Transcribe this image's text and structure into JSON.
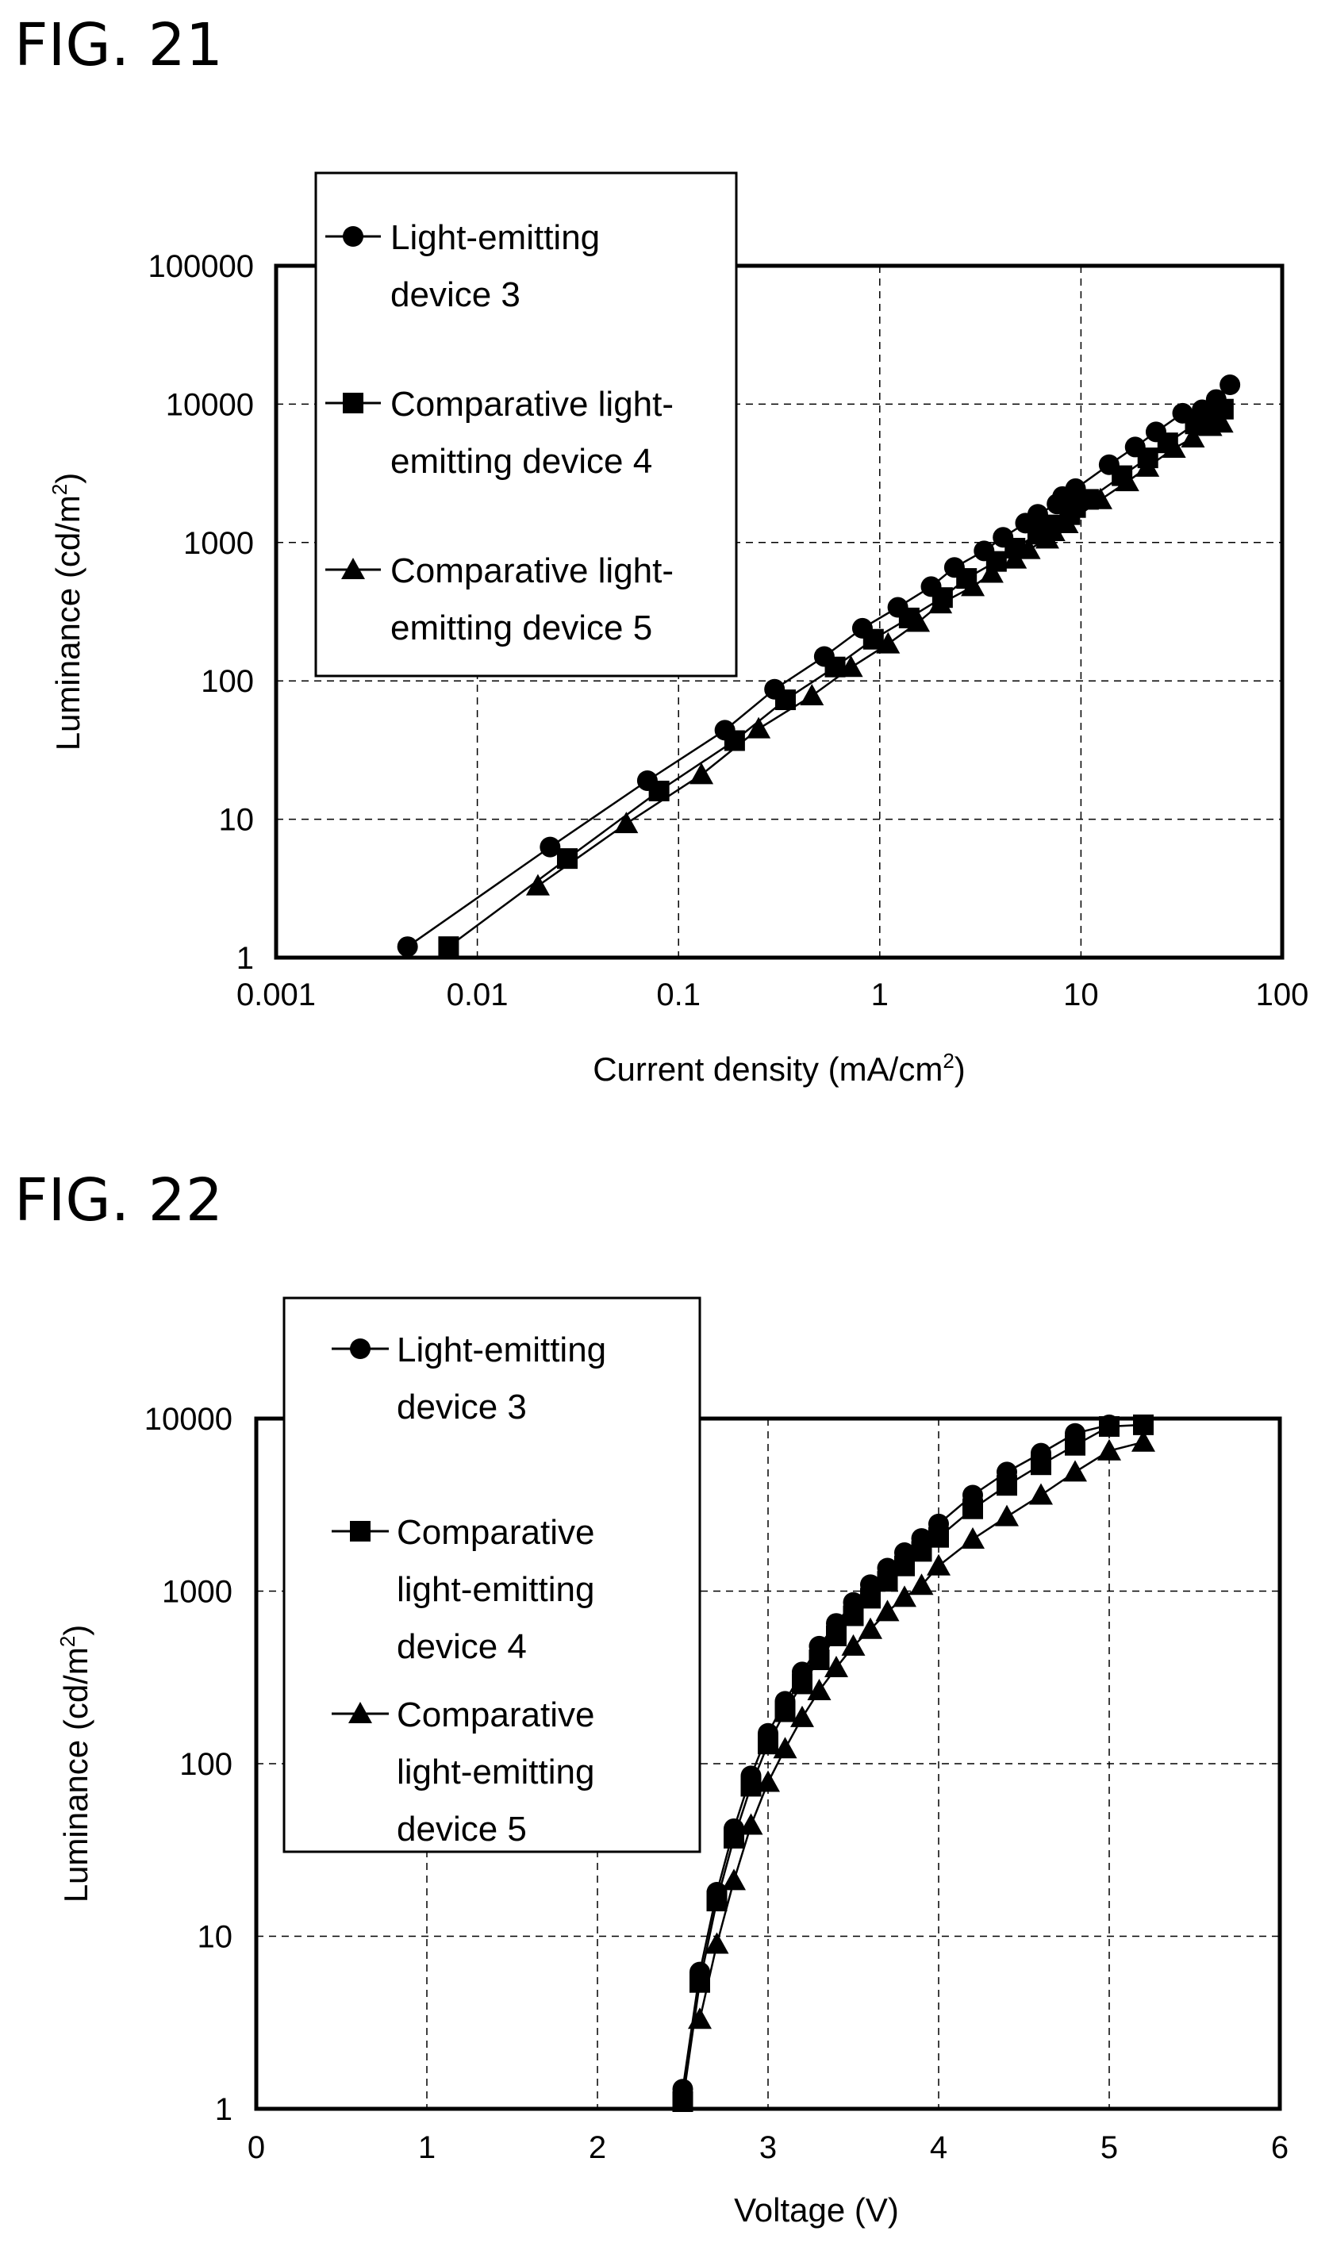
{
  "figures": [
    {
      "title": "FIG. 21",
      "xlabel": "Current density (mA/cm",
      "xlabel_sup": "2",
      "xlabel_end": ")",
      "ylabel": "Luminance (cd/m",
      "ylabel_sup": "2",
      "ylabel_end": ")",
      "x_tick_labels": [
        "0.001",
        "0.01",
        "0.1",
        "1",
        "10",
        "100"
      ],
      "y_tick_labels": [
        "1",
        "10",
        "100",
        "1000",
        "10000",
        "100000"
      ],
      "legend": [
        {
          "lines": [
            "Light-emitting",
            "device 3"
          ]
        },
        {
          "lines": [
            "Comparative light-",
            "emitting device 4"
          ]
        },
        {
          "lines": [
            "Comparative light-",
            "emitting device 5"
          ]
        }
      ]
    },
    {
      "title": "FIG. 22",
      "xlabel": "Voltage (V)",
      "ylabel": "Luminance (cd/m",
      "ylabel_sup": "2",
      "ylabel_end": ")",
      "x_tick_labels": [
        "0",
        "1",
        "2",
        "3",
        "4",
        "5",
        "6"
      ],
      "y_tick_labels": [
        "1",
        "10",
        "100",
        "1000",
        "10000"
      ],
      "legend": [
        {
          "lines": [
            "Light-emitting",
            "device 3"
          ]
        },
        {
          "lines": [
            "Comparative",
            "light-emitting",
            "device 4"
          ]
        },
        {
          "lines": [
            "Comparative",
            "light-emitting",
            "device 5"
          ]
        }
      ]
    }
  ],
  "chart_data": [
    {
      "type": "line",
      "x_scale": "log",
      "y_scale": "log",
      "xlim": [
        0.001,
        100
      ],
      "ylim": [
        1,
        100000
      ],
      "grid": true,
      "legend_position": "top-left",
      "series": [
        {
          "name": "Light-emitting device 3",
          "marker": "circle",
          "x": [
            0.0045,
            0.023,
            0.07,
            0.17,
            0.3,
            0.53,
            0.82,
            1.23,
            1.8,
            2.35,
            3.3,
            4.1,
            5.3,
            6.1,
            7.6,
            8.1,
            9.4,
            13.8,
            18.6,
            23.6,
            32,
            40,
            47,
            55
          ],
          "y": [
            1.2,
            6.3,
            19,
            44,
            87,
            150,
            240,
            340,
            480,
            660,
            870,
            1090,
            1380,
            1600,
            1900,
            2150,
            2450,
            3650,
            4900,
            6300,
            8600,
            9100,
            10800,
            13800
          ]
        },
        {
          "name": "Comparative light-emitting device 4",
          "marker": "square",
          "x": [
            0.0072,
            0.028,
            0.08,
            0.19,
            0.34,
            0.6,
            0.93,
            1.4,
            2.05,
            2.7,
            3.8,
            4.7,
            6.1,
            7.1,
            8.8,
            9.4,
            10.9,
            16,
            21.5,
            27,
            37,
            43,
            51
          ],
          "y": [
            1.2,
            5.2,
            16,
            37,
            73,
            126,
            200,
            285,
            400,
            550,
            730,
            910,
            1150,
            1340,
            1590,
            1790,
            2050,
            3040,
            4090,
            5250,
            7200,
            8000,
            9200
          ]
        },
        {
          "name": "Comparative light-emitting device 5",
          "marker": "triangle",
          "x": [
            0.02,
            0.055,
            0.13,
            0.25,
            0.46,
            0.72,
            1.1,
            1.55,
            2.0,
            2.9,
            3.6,
            4.7,
            5.5,
            6.8,
            7.3,
            8.5,
            12.5,
            17,
            21.4,
            29,
            36,
            44,
            50
          ],
          "y": [
            3.3,
            9.3,
            21,
            45,
            78,
            125,
            185,
            265,
            360,
            480,
            600,
            760,
            890,
            1060,
            1200,
            1370,
            2040,
            2750,
            3500,
            4800,
            5700,
            6900,
            7300
          ]
        }
      ]
    },
    {
      "type": "line",
      "x_scale": "linear",
      "y_scale": "log",
      "xlim": [
        0,
        6
      ],
      "ylim": [
        1,
        10000
      ],
      "grid": true,
      "legend_position": "top-left",
      "series": [
        {
          "name": "Light-emitting device 3",
          "marker": "circle",
          "x": [
            2.5,
            2.6,
            2.7,
            2.8,
            2.9,
            3.0,
            3.1,
            3.2,
            3.3,
            3.4,
            3.5,
            3.6,
            3.7,
            3.8,
            3.9,
            4.0,
            4.2,
            4.4,
            4.6,
            4.8,
            5.0
          ],
          "y": [
            1.3,
            6.2,
            18,
            42,
            85,
            150,
            230,
            340,
            480,
            650,
            860,
            1090,
            1360,
            1670,
            2020,
            2450,
            3600,
            4900,
            6300,
            8200,
            9200
          ]
        },
        {
          "name": "Comparative light-emitting device 4",
          "marker": "square",
          "x": [
            2.5,
            2.6,
            2.7,
            2.8,
            2.9,
            3.0,
            3.1,
            3.2,
            3.3,
            3.4,
            3.5,
            3.6,
            3.7,
            3.8,
            3.9,
            4.0,
            4.2,
            4.4,
            4.6,
            4.8,
            5.0,
            5.2
          ],
          "y": [
            1.1,
            5.4,
            16,
            37,
            74,
            130,
            200,
            290,
            400,
            550,
            720,
            910,
            1140,
            1400,
            1700,
            2050,
            3000,
            4100,
            5400,
            7000,
            9000,
            9200
          ]
        },
        {
          "name": "Comparative light-emitting device 5",
          "marker": "triangle",
          "x": [
            2.6,
            2.7,
            2.8,
            2.9,
            3.0,
            3.1,
            3.2,
            3.3,
            3.4,
            3.5,
            3.6,
            3.7,
            3.8,
            3.9,
            4.0,
            4.2,
            4.4,
            4.6,
            4.8,
            5.0,
            5.2
          ],
          "y": [
            3.3,
            9,
            21,
            44,
            78,
            122,
            185,
            265,
            360,
            480,
            600,
            760,
            920,
            1080,
            1400,
            2000,
            2700,
            3600,
            4900,
            6500,
            7300
          ]
        }
      ]
    }
  ]
}
